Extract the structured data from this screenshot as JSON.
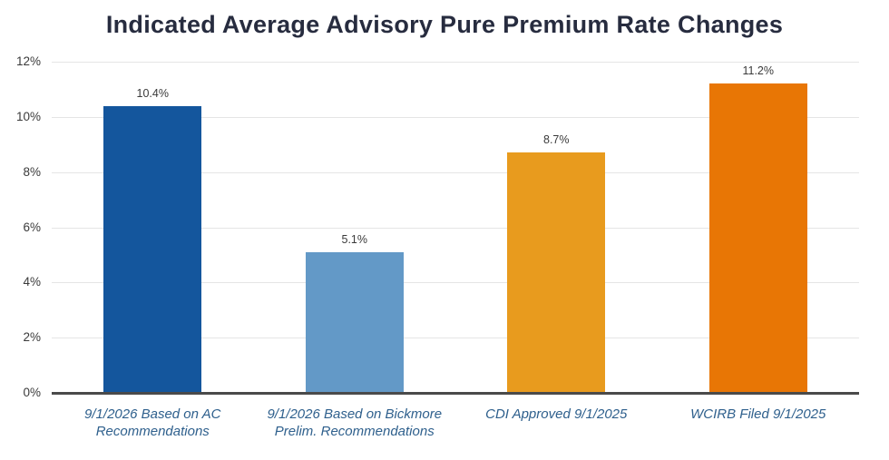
{
  "chart_data": {
    "type": "bar",
    "title": "Indicated Average Advisory Pure Premium Rate Changes",
    "categories": [
      "9/1/2026 Based on AC Recommendations",
      "9/1/2026 Based on Bickmore Prelim. Recommendations",
      "CDI Approved 9/1/2025",
      "WCIRB Filed 9/1/2025"
    ],
    "values": [
      10.4,
      5.1,
      8.7,
      11.2
    ],
    "value_labels": [
      "10.4%",
      "5.1%",
      "8.7%",
      "11.2%"
    ],
    "bar_colors": [
      "#14569D",
      "#6399C7",
      "#E89B1E",
      "#E87605"
    ],
    "xlabel": "",
    "ylabel": "",
    "ylim": [
      0,
      12
    ],
    "ytick_step": 2,
    "ytick_labels": [
      "0%",
      "2%",
      "4%",
      "6%",
      "8%",
      "10%",
      "12%"
    ],
    "grid": "horizontal-on",
    "legend": "none",
    "colors": {
      "title": "#272C3F",
      "axis_line": "#4A4A4A",
      "gridline": "#E5E5E5",
      "tick_label": "#3A3A3A",
      "value_label": "#3A3A3A",
      "category_label": "#2F608D",
      "background": "#FFFFFF"
    }
  }
}
